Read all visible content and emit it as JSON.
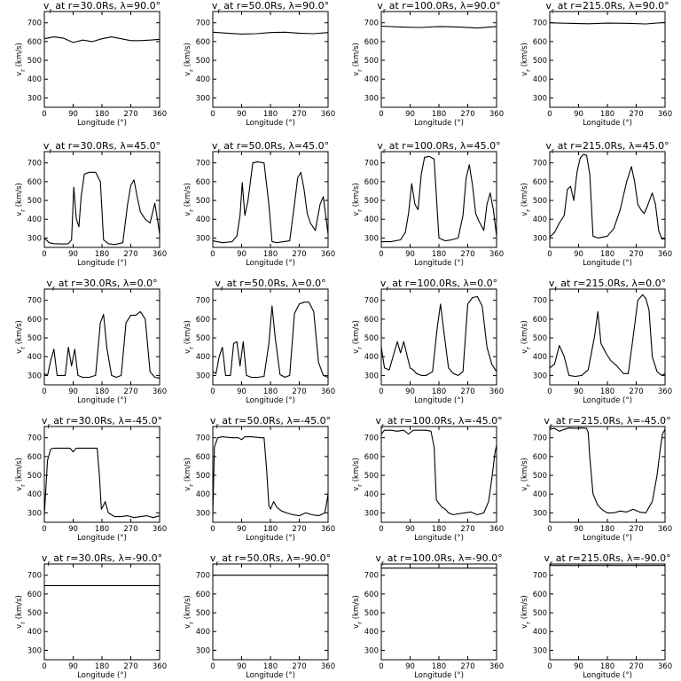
{
  "chart_data": {
    "type": "line",
    "xlabel": "Longitude (°)",
    "ylabel": "v<sub>r</sub> (km/s)",
    "ylabel_text": "vr (km/s)",
    "xlim": [
      0,
      360
    ],
    "ylim": [
      250,
      760
    ],
    "xticks": [
      "0",
      "90",
      "180",
      "270",
      "360"
    ],
    "yticks": [
      "300",
      "400",
      "500",
      "600",
      "700"
    ],
    "grid": false,
    "legend": "none",
    "panels": [
      {
        "title": "vr at r=30.0Rs, λ=90.0°",
        "x": [
          0,
          30,
          60,
          90,
          120,
          150,
          180,
          210,
          240,
          270,
          300,
          330,
          360
        ],
        "y": [
          615,
          625,
          618,
          595,
          608,
          600,
          615,
          625,
          615,
          605,
          605,
          608,
          612
        ]
      },
      {
        "title": "vr at r=50.0Rs, λ=90.0°",
        "x": [
          0,
          45,
          90,
          135,
          180,
          225,
          270,
          315,
          360
        ],
        "y": [
          650,
          645,
          640,
          642,
          648,
          650,
          645,
          642,
          648
        ]
      },
      {
        "title": "vr at r=100.0Rs, λ=90.0°",
        "x": [
          0,
          60,
          120,
          180,
          240,
          300,
          360
        ],
        "y": [
          682,
          678,
          675,
          680,
          678,
          672,
          680
        ]
      },
      {
        "title": "vr at r=215.0Rs, λ=90.0°",
        "x": [
          0,
          60,
          120,
          180,
          240,
          300,
          360
        ],
        "y": [
          700,
          697,
          695,
          698,
          697,
          694,
          702
        ]
      },
      {
        "title": "vr at r=30.0Rs, λ=45.0°",
        "x": [
          0,
          15,
          30,
          60,
          75,
          85,
          92,
          100,
          108,
          115,
          125,
          140,
          160,
          175,
          185,
          200,
          220,
          245,
          260,
          270,
          280,
          290,
          300,
          315,
          330,
          345,
          355,
          360
        ],
        "y": [
          300,
          275,
          270,
          268,
          270,
          290,
          570,
          400,
          360,
          520,
          640,
          650,
          650,
          600,
          290,
          270,
          265,
          275,
          480,
          580,
          610,
          520,
          440,
          400,
          380,
          485,
          380,
          320
        ]
      },
      {
        "title": "vr at r=50.0Rs, λ=45.0°",
        "x": [
          0,
          30,
          60,
          75,
          85,
          92,
          100,
          110,
          125,
          140,
          160,
          175,
          185,
          200,
          220,
          240,
          255,
          265,
          275,
          285,
          295,
          305,
          320,
          335,
          345,
          360
        ],
        "y": [
          285,
          275,
          280,
          310,
          420,
          595,
          420,
          500,
          700,
          705,
          700,
          480,
          280,
          275,
          280,
          285,
          480,
          620,
          650,
          560,
          430,
          380,
          340,
          480,
          520,
          320
        ]
      },
      {
        "title": "vr at r=100.0Rs, λ=45.0°",
        "x": [
          0,
          30,
          60,
          75,
          85,
          95,
          105,
          115,
          125,
          135,
          150,
          165,
          180,
          200,
          220,
          240,
          255,
          265,
          275,
          285,
          295,
          305,
          320,
          330,
          340,
          350,
          360
        ],
        "y": [
          280,
          280,
          290,
          330,
          430,
          590,
          480,
          450,
          640,
          730,
          735,
          720,
          300,
          285,
          290,
          300,
          420,
          620,
          690,
          580,
          430,
          390,
          340,
          480,
          540,
          450,
          310
        ]
      },
      {
        "title": "vr at r=215.0Rs, λ=45.0°",
        "x": [
          0,
          15,
          30,
          45,
          55,
          65,
          75,
          85,
          95,
          105,
          115,
          125,
          135,
          150,
          165,
          180,
          200,
          220,
          240,
          255,
          265,
          275,
          285,
          295,
          305,
          320,
          330,
          340,
          350,
          360
        ],
        "y": [
          305,
          330,
          380,
          420,
          560,
          575,
          500,
          650,
          725,
          745,
          740,
          640,
          310,
          300,
          305,
          310,
          350,
          450,
          600,
          680,
          600,
          480,
          450,
          430,
          470,
          540,
          480,
          340,
          295,
          295
        ]
      },
      {
        "title": "vr at r=30.0Rs, λ=0.0°",
        "x": [
          0,
          10,
          20,
          30,
          40,
          55,
          65,
          75,
          85,
          95,
          105,
          120,
          140,
          160,
          175,
          185,
          195,
          210,
          225,
          240,
          255,
          270,
          285,
          300,
          315,
          330,
          345,
          360
        ],
        "y": [
          310,
          300,
          380,
          440,
          300,
          300,
          300,
          450,
          350,
          440,
          300,
          290,
          290,
          300,
          580,
          625,
          450,
          300,
          290,
          300,
          580,
          620,
          620,
          640,
          600,
          320,
          290,
          285
        ]
      },
      {
        "title": "vr at r=50.0Rs, λ=0.0°",
        "x": [
          0,
          10,
          20,
          30,
          40,
          55,
          65,
          75,
          85,
          95,
          105,
          120,
          140,
          160,
          175,
          185,
          195,
          210,
          225,
          240,
          255,
          270,
          285,
          300,
          315,
          330,
          345,
          360
        ],
        "y": [
          320,
          310,
          400,
          450,
          300,
          300,
          470,
          480,
          350,
          480,
          300,
          290,
          290,
          295,
          470,
          670,
          500,
          305,
          290,
          300,
          630,
          680,
          690,
          690,
          640,
          370,
          300,
          290
        ]
      },
      {
        "title": "vr at r=100.0Rs, λ=0.0°",
        "x": [
          0,
          10,
          25,
          40,
          50,
          60,
          70,
          80,
          90,
          100,
          110,
          125,
          140,
          160,
          175,
          185,
          195,
          210,
          225,
          240,
          255,
          270,
          285,
          300,
          315,
          330,
          345,
          360
        ],
        "y": [
          450,
          340,
          330,
          420,
          480,
          420,
          480,
          410,
          340,
          330,
          310,
          300,
          300,
          320,
          560,
          680,
          540,
          340,
          310,
          300,
          320,
          680,
          715,
          720,
          670,
          450,
          360,
          320
        ]
      },
      {
        "title": "vr at r=215.0Rs, λ=0.0°",
        "x": [
          0,
          15,
          30,
          45,
          60,
          80,
          100,
          120,
          140,
          150,
          160,
          175,
          190,
          210,
          230,
          245,
          260,
          275,
          290,
          300,
          310,
          320,
          335,
          350,
          360
        ],
        "y": [
          340,
          360,
          460,
          400,
          300,
          295,
          300,
          330,
          510,
          640,
          470,
          420,
          380,
          350,
          310,
          310,
          500,
          700,
          730,
          710,
          650,
          400,
          320,
          300,
          310
        ]
      },
      {
        "title": "vr at r=30.0Rs, λ=-45.0°",
        "x": [
          0,
          10,
          20,
          30,
          60,
          80,
          90,
          100,
          120,
          150,
          165,
          172,
          178,
          185,
          190,
          200,
          210,
          220,
          240,
          260,
          280,
          300,
          320,
          340,
          360
        ],
        "y": [
          290,
          580,
          640,
          645,
          645,
          645,
          625,
          645,
          645,
          645,
          645,
          500,
          320,
          340,
          360,
          300,
          290,
          280,
          280,
          285,
          275,
          280,
          285,
          275,
          285
        ]
      },
      {
        "title": "vr at r=50.0Rs, λ=-45.0°",
        "x": [
          0,
          5,
          15,
          30,
          60,
          80,
          90,
          100,
          120,
          150,
          160,
          168,
          175,
          180,
          190,
          200,
          215,
          230,
          250,
          270,
          290,
          310,
          330,
          350,
          360
        ],
        "y": [
          290,
          650,
          700,
          705,
          700,
          700,
          690,
          705,
          705,
          700,
          700,
          530,
          340,
          320,
          360,
          330,
          310,
          300,
          290,
          285,
          300,
          290,
          285,
          300,
          400
        ]
      },
      {
        "title": "vr at r=100.0Rs, λ=-45.0°",
        "x": [
          0,
          10,
          30,
          50,
          70,
          85,
          100,
          120,
          140,
          155,
          165,
          172,
          180,
          190,
          200,
          210,
          225,
          240,
          260,
          280,
          300,
          320,
          335,
          345,
          355,
          360
        ],
        "y": [
          720,
          740,
          740,
          735,
          740,
          720,
          740,
          740,
          740,
          735,
          650,
          370,
          350,
          330,
          320,
          300,
          290,
          295,
          300,
          305,
          290,
          300,
          360,
          480,
          620,
          660
        ]
      },
      {
        "title": "vr at r=215.0Rs, λ=-45.0°",
        "x": [
          0,
          15,
          30,
          45,
          60,
          80,
          100,
          115,
          120,
          125,
          135,
          150,
          165,
          180,
          200,
          220,
          240,
          260,
          280,
          300,
          320,
          335,
          345,
          352,
          360
        ],
        "y": [
          745,
          750,
          735,
          745,
          752,
          750,
          752,
          750,
          730,
          600,
          400,
          340,
          315,
          300,
          300,
          310,
          305,
          320,
          305,
          300,
          360,
          500,
          640,
          720,
          745
        ]
      },
      {
        "title": "vr at r=30.0Rs, λ=-90.0°",
        "x": [
          0,
          360
        ],
        "y": [
          645,
          645
        ]
      },
      {
        "title": "vr at r=50.0Rs, λ=-90.0°",
        "x": [
          0,
          360
        ],
        "y": [
          700,
          700
        ]
      },
      {
        "title": "vr at r=100.0Rs, λ=-90.0°",
        "x": [
          0,
          360
        ],
        "y": [
          738,
          738
        ]
      },
      {
        "title": "vr at r=215.0Rs, λ=-90.0°",
        "x": [
          0,
          360
        ],
        "y": [
          752,
          752
        ]
      }
    ]
  }
}
